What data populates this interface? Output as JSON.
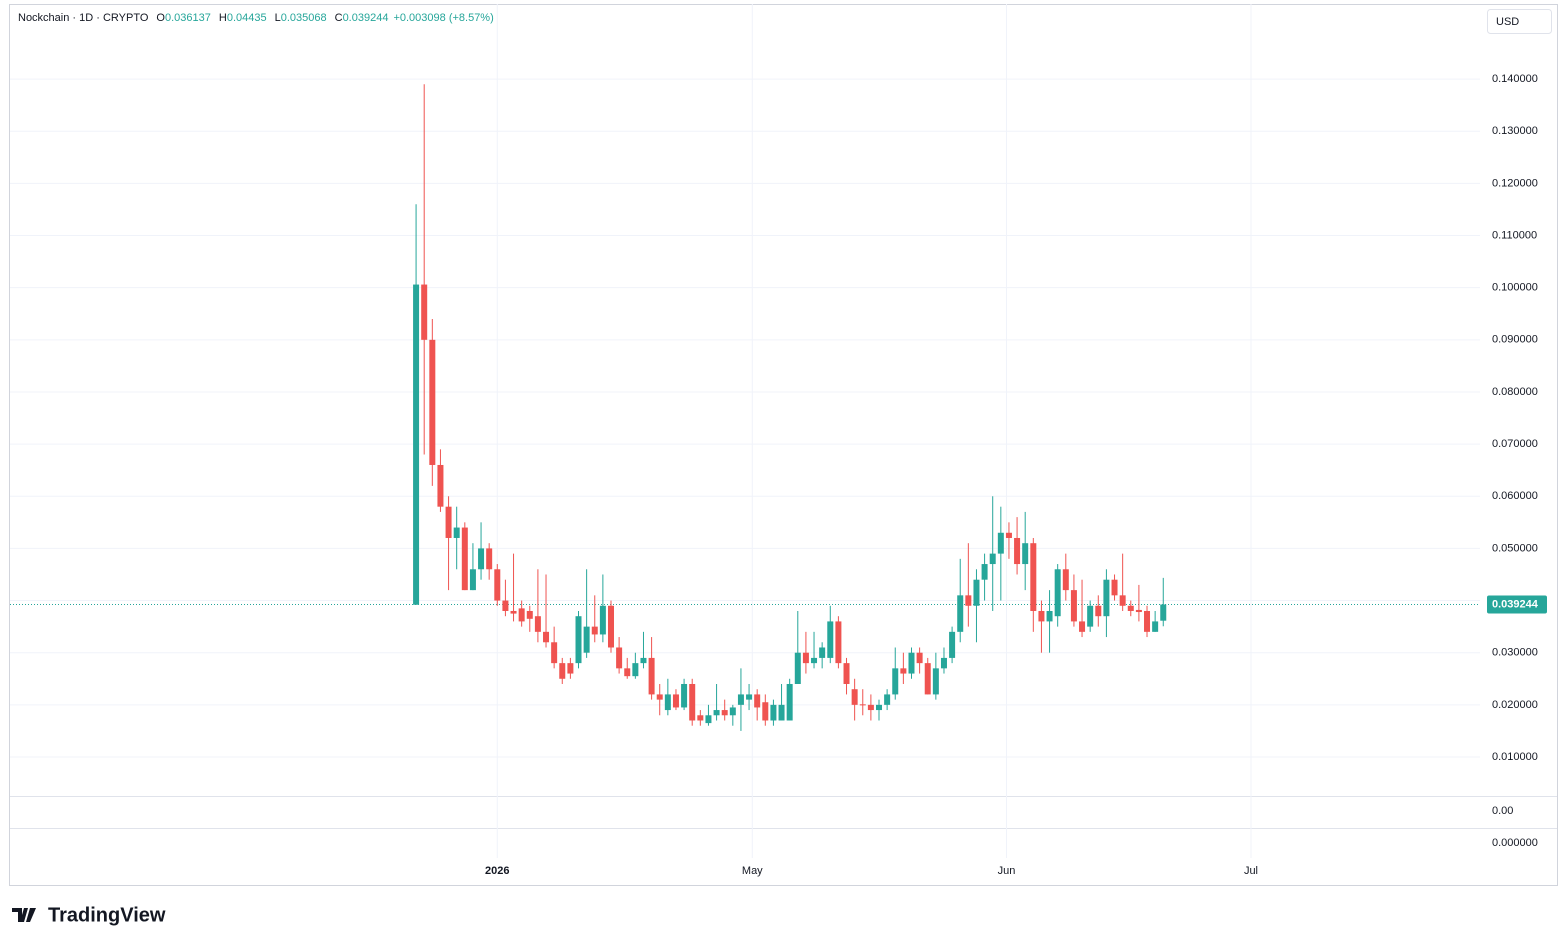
{
  "chart_data": {
    "type": "candlestick",
    "symbol": "Nockchain · 1D · CRYPTO",
    "legend_labels": [
      "O",
      "H",
      "L",
      "C"
    ],
    "change": "+0.003098 (+8.57%)",
    "currency": "USD",
    "brand": "TradingView",
    "up_color": "#26a69a",
    "down_color": "#ef5350",
    "open": [
      0.0392,
      0.1006,
      0.09,
      0.066,
      0.058,
      0.052,
      0.054,
      0.042,
      0.046,
      0.05,
      0.046,
      0.04,
      0.038,
      0.0385,
      0.038,
      0.037,
      0.034,
      0.032,
      0.028,
      0.028,
      0.028,
      0.03,
      0.035,
      0.0335,
      0.039,
      0.031,
      0.027,
      0.0255,
      0.028,
      0.029,
      0.022,
      0.019,
      0.022,
      0.0195,
      0.024,
      0.018,
      0.0165,
      0.018,
      0.019,
      0.018,
      0.02,
      0.021,
      0.022,
      0.0205,
      0.017,
      0.017,
      0.017,
      0.024,
      0.03,
      0.028,
      0.029,
      0.029,
      0.036,
      0.028,
      0.023,
      0.0201,
      0.02,
      0.019,
      0.02,
      0.022,
      0.027,
      0.026,
      0.03,
      0.028,
      0.022,
      0.027,
      0.029,
      0.034,
      0.041,
      0.039,
      0.044,
      0.047,
      0.049,
      0.053,
      0.052,
      0.047,
      0.051,
      0.038,
      0.036,
      0.037,
      0.046,
      0.042,
      0.036,
      0.035,
      0.039,
      0.037,
      0.044,
      0.041,
      0.039,
      0.0382,
      0.038,
      0.034,
      0.036137
    ],
    "high": [
      0.116,
      0.139,
      0.094,
      0.069,
      0.06,
      0.058,
      0.055,
      0.051,
      0.055,
      0.051,
      0.047,
      0.044,
      0.049,
      0.04,
      0.039,
      0.046,
      0.045,
      0.035,
      0.029,
      0.029,
      0.038,
      0.046,
      0.041,
      0.045,
      0.04,
      0.033,
      0.029,
      0.03,
      0.034,
      0.033,
      0.024,
      0.025,
      0.023,
      0.025,
      0.025,
      0.019,
      0.02,
      0.024,
      0.021,
      0.02,
      0.027,
      0.024,
      0.023,
      0.022,
      0.021,
      0.024,
      0.025,
      0.038,
      0.034,
      0.034,
      0.032,
      0.039,
      0.037,
      0.029,
      0.025,
      0.023,
      0.022,
      0.021,
      0.023,
      0.031,
      0.03,
      0.031,
      0.031,
      0.029,
      0.03,
      0.031,
      0.035,
      0.048,
      0.051,
      0.046,
      0.049,
      0.06,
      0.058,
      0.055,
      0.056,
      0.057,
      0.052,
      0.04,
      0.042,
      0.047,
      0.049,
      0.045,
      0.044,
      0.04,
      0.041,
      0.046,
      0.045,
      0.049,
      0.04,
      0.043,
      0.039,
      0.038,
      0.04435
    ],
    "low": [
      0.0392,
      0.068,
      0.062,
      0.057,
      0.042,
      0.046,
      0.042,
      0.042,
      0.044,
      0.044,
      0.039,
      0.037,
      0.036,
      0.035,
      0.034,
      0.032,
      0.031,
      0.027,
      0.024,
      0.025,
      0.027,
      0.029,
      0.032,
      0.032,
      0.03,
      0.026,
      0.025,
      0.025,
      0.027,
      0.021,
      0.018,
      0.018,
      0.019,
      0.019,
      0.016,
      0.016,
      0.016,
      0.017,
      0.017,
      0.016,
      0.015,
      0.019,
      0.017,
      0.016,
      0.016,
      0.017,
      0.017,
      0.024,
      0.026,
      0.027,
      0.027,
      0.028,
      0.027,
      0.022,
      0.017,
      0.018,
      0.017,
      0.017,
      0.019,
      0.021,
      0.024,
      0.025,
      0.026,
      0.022,
      0.021,
      0.026,
      0.028,
      0.032,
      0.035,
      0.032,
      0.04,
      0.038,
      0.04,
      0.048,
      0.045,
      0.042,
      0.034,
      0.03,
      0.03,
      0.035,
      0.04,
      0.035,
      0.033,
      0.034,
      0.035,
      0.033,
      0.04,
      0.038,
      0.037,
      0.036,
      0.033,
      0.034,
      0.035068
    ],
    "close": [
      0.1006,
      0.09,
      0.066,
      0.058,
      0.052,
      0.054,
      0.042,
      0.046,
      0.05,
      0.046,
      0.04,
      0.038,
      0.0375,
      0.036,
      0.0365,
      0.034,
      0.032,
      0.028,
      0.025,
      0.026,
      0.037,
      0.035,
      0.0335,
      0.039,
      0.031,
      0.027,
      0.0255,
      0.028,
      0.029,
      0.022,
      0.021,
      0.022,
      0.0195,
      0.024,
      0.017,
      0.017,
      0.018,
      0.019,
      0.018,
      0.0195,
      0.022,
      0.022,
      0.0195,
      0.017,
      0.02,
      0.02,
      0.024,
      0.03,
      0.028,
      0.029,
      0.031,
      0.036,
      0.028,
      0.024,
      0.02,
      0.0199,
      0.019,
      0.02,
      0.022,
      0.027,
      0.026,
      0.03,
      0.028,
      0.022,
      0.027,
      0.029,
      0.034,
      0.041,
      0.039,
      0.044,
      0.047,
      0.049,
      0.053,
      0.052,
      0.047,
      0.051,
      0.038,
      0.036,
      0.038,
      0.046,
      0.042,
      0.036,
      0.034,
      0.039,
      0.037,
      0.044,
      0.041,
      0.039,
      0.038,
      0.0378,
      0.034,
      0.036,
      0.039244
    ],
    "xlim": [
      -50,
      131
    ],
    "xticks": [
      {
        "value": 10,
        "label": "2026"
      },
      {
        "value": 41.4,
        "label": "May"
      },
      {
        "value": 72.7,
        "label": "Jun"
      },
      {
        "value": 102.8,
        "label": "Jul"
      }
    ],
    "ylim": [
      0.00252,
      0.1544
    ],
    "yticks": [
      {
        "value": 0.01,
        "label": "0.010000"
      },
      {
        "value": 0.02,
        "label": "0.020000"
      },
      {
        "value": 0.03,
        "label": "0.030000"
      },
      {
        "value": 0.04,
        "label": "0.040000"
      },
      {
        "value": 0.05,
        "label": "0.050000"
      },
      {
        "value": 0.06,
        "label": "0.060000"
      },
      {
        "value": 0.07,
        "label": "0.070000"
      },
      {
        "value": 0.08,
        "label": "0.080000"
      },
      {
        "value": 0.09,
        "label": "0.090000"
      },
      {
        "value": 0.1,
        "label": "0.100000"
      },
      {
        "value": 0.11,
        "label": "0.110000"
      },
      {
        "value": 0.12,
        "label": "0.120000"
      },
      {
        "value": 0.13,
        "label": "0.130000"
      },
      {
        "value": 0.14,
        "label": "0.140000"
      }
    ],
    "pane_ticks": [
      {
        "value": 0,
        "label": "0.00"
      },
      {
        "value": 0,
        "label": "0.000000"
      }
    ],
    "grid": true
  }
}
